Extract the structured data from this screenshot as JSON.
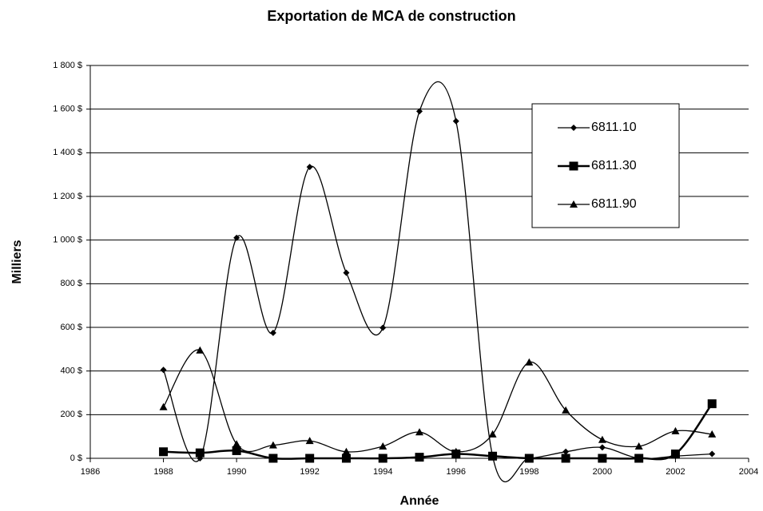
{
  "chart_data": {
    "type": "line",
    "title": "Exportation de MCA de construction",
    "xlabel": "Année",
    "ylabel": "Milliers",
    "x": [
      1988,
      1989,
      1990,
      1991,
      1992,
      1993,
      1994,
      1995,
      1996,
      1997,
      1998,
      1999,
      2000,
      2001,
      2002,
      2003
    ],
    "series": [
      {
        "name": "6811.10",
        "color": "#000000",
        "marker": "diamond",
        "values": [
          405,
          0,
          1010,
          575,
          1335,
          850,
          598,
          1590,
          1545,
          10,
          0,
          30,
          50,
          0,
          10,
          20
        ]
      },
      {
        "name": "6811.30",
        "color": "#000000",
        "marker": "square",
        "values": [
          30,
          25,
          35,
          0,
          0,
          0,
          0,
          5,
          20,
          10,
          0,
          0,
          0,
          0,
          20,
          250
        ]
      },
      {
        "name": "6811.90",
        "color": "#000000",
        "marker": "triangle",
        "values": [
          235,
          495,
          65,
          60,
          80,
          30,
          55,
          120,
          30,
          110,
          440,
          220,
          85,
          55,
          125,
          110
        ]
      }
    ],
    "xlim": [
      1986,
      2004
    ],
    "xticks": [
      1986,
      1988,
      1990,
      1992,
      1994,
      1996,
      1998,
      2000,
      2002,
      2004
    ],
    "ylim": [
      0,
      1800
    ],
    "yticks": [
      {
        "value": 0,
        "label": "0 $"
      },
      {
        "value": 200,
        "label": "200 $"
      },
      {
        "value": 400,
        "label": "400 $"
      },
      {
        "value": 600,
        "label": "600 $"
      },
      {
        "value": 800,
        "label": "800 $"
      },
      {
        "value": 1000,
        "label": "1 000 $"
      },
      {
        "value": 1200,
        "label": "1 200 $"
      },
      {
        "value": 1400,
        "label": "1 400 $"
      },
      {
        "value": 1600,
        "label": "1 600 $"
      },
      {
        "value": 1800,
        "label": "1 800 $"
      }
    ],
    "grid": true,
    "smooth": true,
    "legend": "right"
  }
}
